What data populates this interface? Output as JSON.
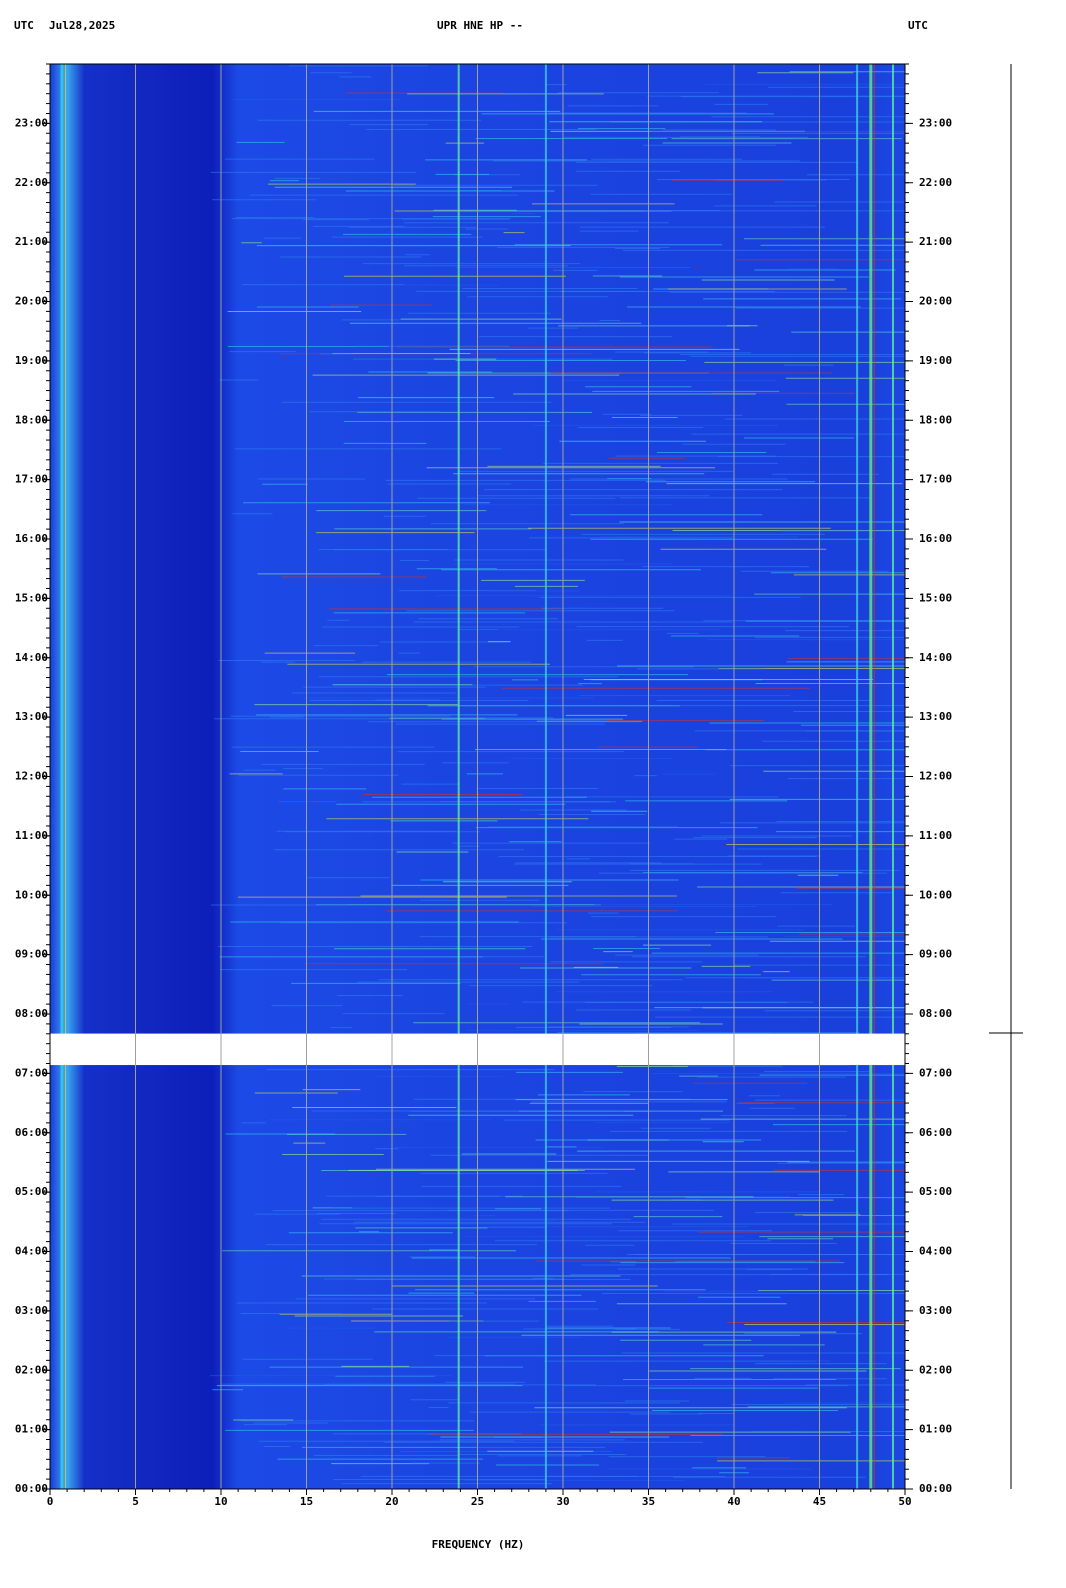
{
  "chart_data": {
    "type": "spectrogram",
    "title": "UPR HNE HP --",
    "time_zone_left": "UTC",
    "date": "Jul28,2025",
    "time_zone_right": "UTC",
    "x_label": "FREQUENCY (HZ)",
    "xlim": [
      0,
      50
    ],
    "xticks": [
      0,
      5,
      10,
      15,
      20,
      25,
      30,
      35,
      40,
      45,
      50
    ],
    "ylim": [
      0,
      24
    ],
    "yticks": [
      {
        "value": 0,
        "label": "00:00"
      },
      {
        "value": 1,
        "label": "01:00"
      },
      {
        "value": 2,
        "label": "02:00"
      },
      {
        "value": 3,
        "label": "03:00"
      },
      {
        "value": 4,
        "label": "04:00"
      },
      {
        "value": 5,
        "label": "05:00"
      },
      {
        "value": 6,
        "label": "06:00"
      },
      {
        "value": 7,
        "label": "07:00"
      },
      {
        "value": 8,
        "label": "08:00"
      },
      {
        "value": 9,
        "label": "09:00"
      },
      {
        "value": 10,
        "label": "10:00"
      },
      {
        "value": 11,
        "label": "11:00"
      },
      {
        "value": 12,
        "label": "12:00"
      },
      {
        "value": 13,
        "label": "13:00"
      },
      {
        "value": 14,
        "label": "14:00"
      },
      {
        "value": 15,
        "label": "15:00"
      },
      {
        "value": 16,
        "label": "16:00"
      },
      {
        "value": 17,
        "label": "17:00"
      },
      {
        "value": 18,
        "label": "18:00"
      },
      {
        "value": 19,
        "label": "19:00"
      },
      {
        "value": 20,
        "label": "20:00"
      },
      {
        "value": 21,
        "label": "21:00"
      },
      {
        "value": 22,
        "label": "22:00"
      },
      {
        "value": 23,
        "label": "23:00"
      }
    ],
    "data_gaps": [
      [
        7.14,
        7.67
      ]
    ],
    "grid": true
  }
}
